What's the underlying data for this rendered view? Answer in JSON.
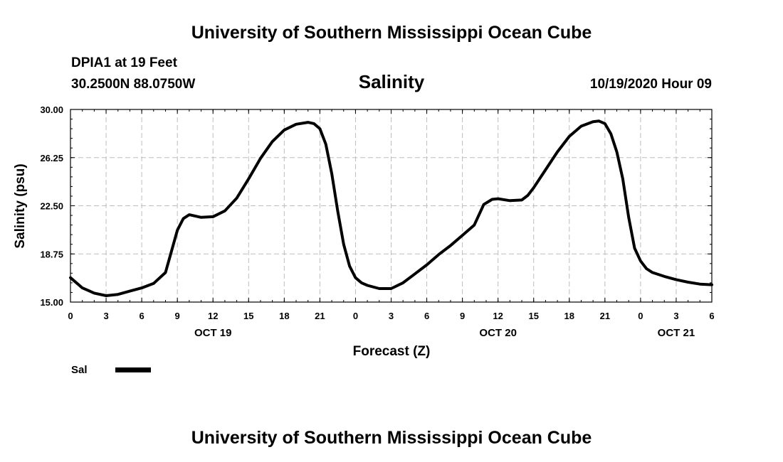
{
  "header": {
    "title": "University of Southern Mississippi Ocean Cube",
    "station": "DPIA1 at 19 Feet",
    "coords": "30.2500N 88.0750W",
    "variable": "Salinity",
    "forecast_time": "10/19/2020 Hour 09"
  },
  "footer": {
    "title": "University of Southern Mississippi Ocean Cube"
  },
  "chart_data": {
    "type": "line",
    "title": "Salinity",
    "xlabel": "Forecast (Z)",
    "ylabel": "Salinity (psu)",
    "x_unit": "hours from 00Z Oct 19",
    "xlim": [
      0,
      54
    ],
    "ylim": [
      15.0,
      30.0
    ],
    "grid": true,
    "y_ticks": [
      "15.00",
      "18.75",
      "22.50",
      "26.25",
      "30.00"
    ],
    "x_ticks": [
      {
        "x": 0,
        "label": "0"
      },
      {
        "x": 3,
        "label": "3"
      },
      {
        "x": 6,
        "label": "6"
      },
      {
        "x": 9,
        "label": "9"
      },
      {
        "x": 12,
        "label": "12"
      },
      {
        "x": 15,
        "label": "15"
      },
      {
        "x": 18,
        "label": "18"
      },
      {
        "x": 21,
        "label": "21"
      },
      {
        "x": 24,
        "label": "0"
      },
      {
        "x": 27,
        "label": "3"
      },
      {
        "x": 30,
        "label": "6"
      },
      {
        "x": 33,
        "label": "9"
      },
      {
        "x": 36,
        "label": "12"
      },
      {
        "x": 39,
        "label": "15"
      },
      {
        "x": 42,
        "label": "18"
      },
      {
        "x": 45,
        "label": "21"
      },
      {
        "x": 48,
        "label": "0"
      },
      {
        "x": 51,
        "label": "3"
      },
      {
        "x": 54,
        "label": "6"
      }
    ],
    "day_labels": [
      {
        "x": 12,
        "label": "OCT 19"
      },
      {
        "x": 36,
        "label": "OCT 20"
      },
      {
        "x": 51,
        "label": "OCT 21"
      }
    ],
    "legend": {
      "placement": "bottom-left",
      "entries": [
        "Sal"
      ]
    },
    "series": [
      {
        "name": "Sal",
        "color": "#000000",
        "points": [
          [
            0,
            16.9
          ],
          [
            1,
            16.1
          ],
          [
            2,
            15.7
          ],
          [
            3,
            15.5
          ],
          [
            4,
            15.6
          ],
          [
            5,
            15.85
          ],
          [
            6,
            16.1
          ],
          [
            7,
            16.45
          ],
          [
            8,
            17.3
          ],
          [
            9,
            20.6
          ],
          [
            9.5,
            21.5
          ],
          [
            10,
            21.8
          ],
          [
            11,
            21.6
          ],
          [
            12,
            21.65
          ],
          [
            13,
            22.1
          ],
          [
            14,
            23.1
          ],
          [
            15,
            24.6
          ],
          [
            16,
            26.2
          ],
          [
            17,
            27.5
          ],
          [
            18,
            28.4
          ],
          [
            19,
            28.85
          ],
          [
            20,
            29.0
          ],
          [
            20.5,
            28.9
          ],
          [
            21,
            28.5
          ],
          [
            21.5,
            27.3
          ],
          [
            22,
            25.0
          ],
          [
            22.5,
            22.1
          ],
          [
            23,
            19.5
          ],
          [
            23.5,
            17.8
          ],
          [
            24,
            16.9
          ],
          [
            24.5,
            16.5
          ],
          [
            25,
            16.3
          ],
          [
            26,
            16.05
          ],
          [
            27,
            16.05
          ],
          [
            28,
            16.5
          ],
          [
            29,
            17.2
          ],
          [
            30,
            17.9
          ],
          [
            31,
            18.7
          ],
          [
            32,
            19.4
          ],
          [
            33,
            20.2
          ],
          [
            34,
            21.0
          ],
          [
            34.8,
            22.6
          ],
          [
            35.5,
            23.0
          ],
          [
            36,
            23.05
          ],
          [
            37,
            22.9
          ],
          [
            38,
            22.95
          ],
          [
            38.5,
            23.3
          ],
          [
            39,
            23.9
          ],
          [
            40,
            25.3
          ],
          [
            41,
            26.7
          ],
          [
            42,
            27.9
          ],
          [
            43,
            28.7
          ],
          [
            44,
            29.05
          ],
          [
            44.5,
            29.1
          ],
          [
            45,
            28.9
          ],
          [
            45.5,
            28.1
          ],
          [
            46,
            26.7
          ],
          [
            46.5,
            24.6
          ],
          [
            47,
            21.6
          ],
          [
            47.5,
            19.2
          ],
          [
            48,
            18.2
          ],
          [
            48.5,
            17.6
          ],
          [
            49,
            17.3
          ],
          [
            50,
            17.0
          ],
          [
            51,
            16.75
          ],
          [
            52,
            16.55
          ],
          [
            53,
            16.4
          ],
          [
            54,
            16.35
          ]
        ]
      }
    ]
  }
}
